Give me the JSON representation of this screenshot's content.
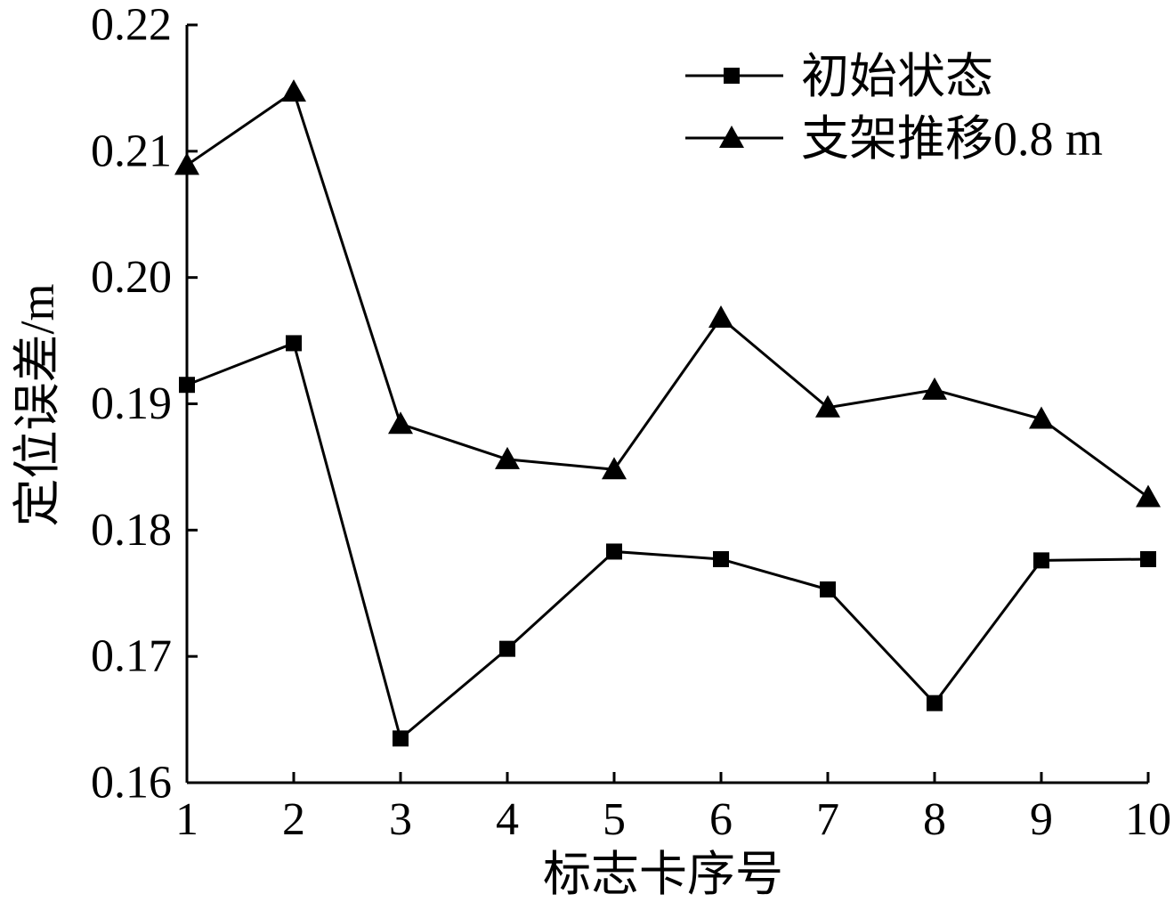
{
  "chart_data": {
    "type": "line",
    "x": [
      1,
      2,
      3,
      4,
      5,
      6,
      7,
      8,
      9,
      10
    ],
    "xlim": [
      1,
      10
    ],
    "yticks": [
      "0.16",
      "0.17",
      "0.18",
      "0.19",
      "0.20",
      "0.21",
      "0.22"
    ],
    "ylim": [
      0.16,
      0.22
    ],
    "xlabel": "标志卡序号",
    "ylabel": "定位误差/m",
    "grid": false,
    "legend_position": "top-right",
    "series": [
      {
        "name": "初始状态",
        "marker": "square",
        "color": "#000000",
        "values": [
          0.1915,
          0.1948,
          0.1635,
          0.1706,
          0.1783,
          0.1777,
          0.1753,
          0.1663,
          0.1776,
          0.1777
        ]
      },
      {
        "name": "支架推移0.8 m",
        "marker": "triangle",
        "color": "#000000",
        "values": [
          0.2089,
          0.2147,
          0.1884,
          0.1856,
          0.1848,
          0.1968,
          0.1897,
          0.1911,
          0.1888,
          0.1826
        ]
      }
    ]
  }
}
